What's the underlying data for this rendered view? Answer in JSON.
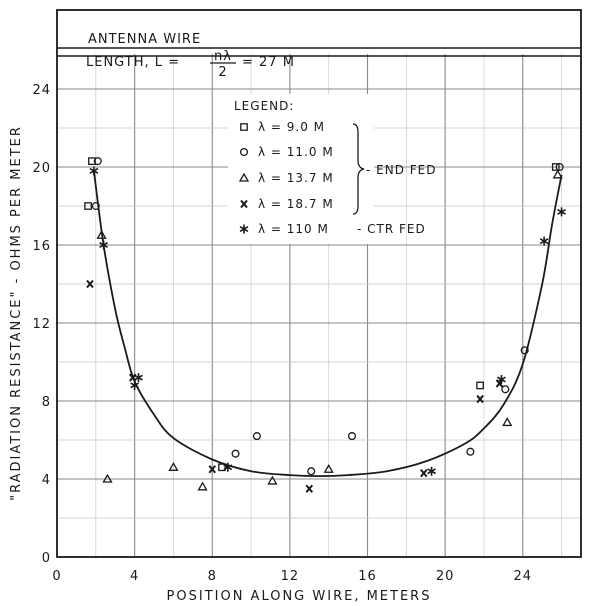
{
  "header": {
    "line1": "ANTENNA WIRE",
    "line2_prefix": "LENGTH,  L =",
    "line2_frac_num": "nλ",
    "line2_frac_den": "2",
    "line2_suffix": "= 27 M"
  },
  "legend_title": "LEGEND:",
  "legend_group_label": "END FED",
  "chart_data": {
    "type": "scatter",
    "xlabel": "POSITION ALONG WIRE, METERS",
    "ylabel": "\"RADIATION RESISTANCE\" - OHMS PER METER",
    "xlim": [
      0,
      27
    ],
    "ylim": [
      0,
      24
    ],
    "xticks": [
      0,
      4,
      8,
      12,
      16,
      20,
      24
    ],
    "yticks": [
      0,
      4,
      8,
      12,
      16,
      20,
      24
    ],
    "grid": true,
    "legend_position": "top-center",
    "series": [
      {
        "name": "λ = 9.0 M",
        "marker": "square",
        "points": [
          [
            1.8,
            20.3
          ],
          [
            1.6,
            18.0
          ],
          [
            8.5,
            4.6
          ],
          [
            21.8,
            8.8
          ],
          [
            25.7,
            20.0
          ]
        ]
      },
      {
        "name": "λ = 11.0 M",
        "marker": "circle",
        "points": [
          [
            2.1,
            20.3
          ],
          [
            2.0,
            18.0
          ],
          [
            9.2,
            5.3
          ],
          [
            10.3,
            6.2
          ],
          [
            13.1,
            4.4
          ],
          [
            15.2,
            6.2
          ],
          [
            21.3,
            5.4
          ],
          [
            23.1,
            8.6
          ],
          [
            24.1,
            10.6
          ],
          [
            25.9,
            20.0
          ]
        ]
      },
      {
        "name": "λ = 13.7 M",
        "marker": "triangle",
        "points": [
          [
            2.3,
            16.5
          ],
          [
            2.6,
            4.0
          ],
          [
            6.0,
            4.6
          ],
          [
            7.5,
            3.6
          ],
          [
            11.1,
            3.9
          ],
          [
            14.0,
            4.5
          ],
          [
            23.2,
            6.9
          ],
          [
            25.8,
            19.6
          ]
        ]
      },
      {
        "name": "λ = 18.7 M",
        "marker": "x",
        "points": [
          [
            1.7,
            14.0
          ],
          [
            3.9,
            9.2
          ],
          [
            8.0,
            4.5
          ],
          [
            13.0,
            3.5
          ],
          [
            18.9,
            4.3
          ],
          [
            21.8,
            8.1
          ],
          [
            22.8,
            8.9
          ]
        ]
      },
      {
        "name": "λ = 110 M",
        "marker": "star",
        "points": [
          [
            1.9,
            19.8
          ],
          [
            2.4,
            16.0
          ],
          [
            4.2,
            9.2
          ],
          [
            4.0,
            8.8
          ],
          [
            8.8,
            4.6
          ],
          [
            19.3,
            4.4
          ],
          [
            22.9,
            9.1
          ],
          [
            25.1,
            16.2
          ],
          [
            26.0,
            17.7
          ]
        ]
      }
    ],
    "series_notes": {
      "λ = 110 M": "CTR FED"
    },
    "fit_curve": {
      "points": [
        [
          1.9,
          19.8
        ],
        [
          2.4,
          16.0
        ],
        [
          3,
          12.7
        ],
        [
          3.5,
          10.7
        ],
        [
          4,
          9.0
        ],
        [
          5,
          7.3
        ],
        [
          6,
          6.1
        ],
        [
          8,
          5.0
        ],
        [
          10,
          4.4
        ],
        [
          12,
          4.2
        ],
        [
          13.5,
          4.15
        ],
        [
          15,
          4.2
        ],
        [
          17,
          4.4
        ],
        [
          19,
          4.9
        ],
        [
          21,
          5.8
        ],
        [
          22,
          6.6
        ],
        [
          23,
          7.8
        ],
        [
          24,
          9.9
        ],
        [
          25,
          14.0
        ],
        [
          25.5,
          17.0
        ],
        [
          26,
          19.6
        ]
      ]
    }
  }
}
